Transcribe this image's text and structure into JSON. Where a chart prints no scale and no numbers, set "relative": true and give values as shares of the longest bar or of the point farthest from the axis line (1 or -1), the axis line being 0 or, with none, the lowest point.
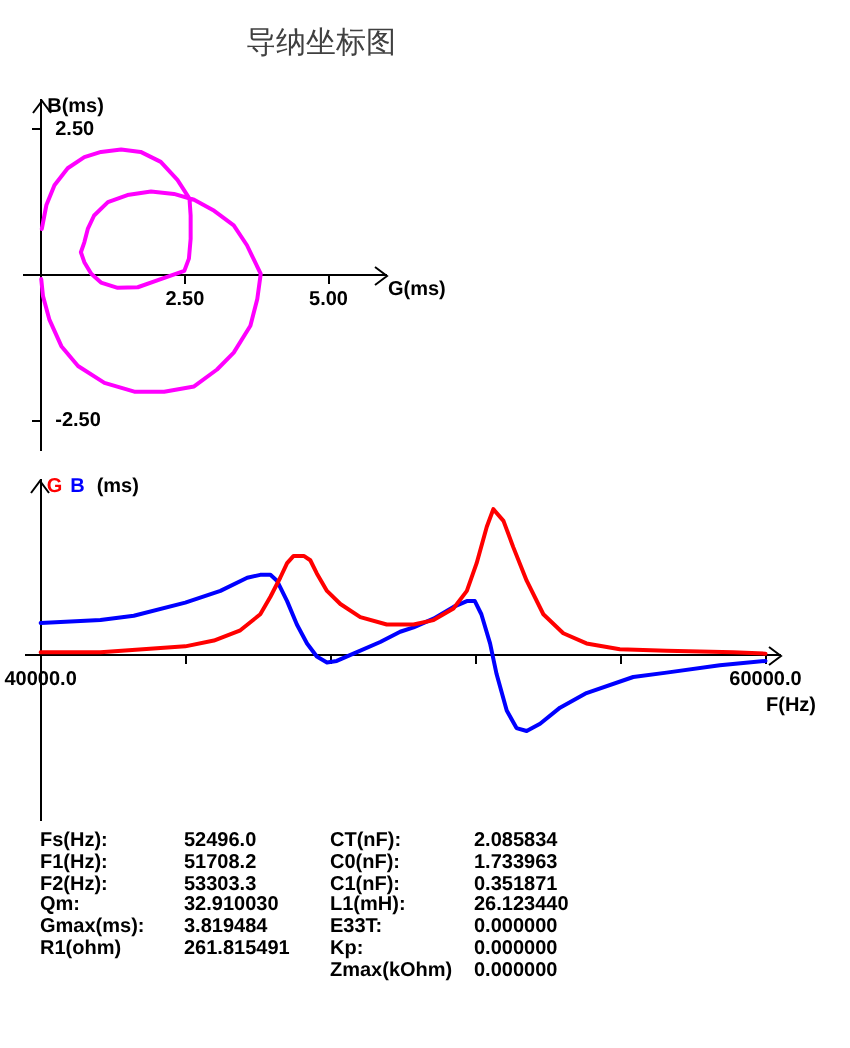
{
  "chart_data": [
    {
      "type": "line",
      "title": "导纳坐标图",
      "xlabel": "G(ms)",
      "ylabel": "B(ms)",
      "xlim": [
        -0.3,
        6.0
      ],
      "ylim": [
        -3.0,
        3.0
      ],
      "xticks": [
        {
          "value": 2.5,
          "label": "2.50"
        },
        {
          "value": 5,
          "label": "5.00"
        }
      ],
      "yticks": [
        {
          "value": 2.5,
          "label": "2.50"
        },
        {
          "value": -2.5,
          "label": "-2.50"
        }
      ],
      "series": [
        {
          "color": "#ff00ff",
          "x": [
            0.01,
            0.09,
            0.23,
            0.46,
            0.75,
            1.04,
            1.39,
            1.73,
            2.08,
            2.37,
            2.58,
            2.6,
            2.6,
            2.57,
            2.49,
            2.08,
            1.68,
            1.33,
            1.04,
            0.87,
            0.75,
            0.69,
            0.75,
            0.81,
            0.92,
            1.16,
            1.5,
            1.91,
            2.31,
            2.66,
            3.01,
            3.35,
            3.58,
            3.82,
            3.76,
            3.64,
            3.35,
            3.06,
            2.66,
            2.14,
            1.62,
            1.1,
            0.64,
            0.35,
            0.14,
            0.03,
            0.0
          ],
          "values": [
            0.79,
            1.2,
            1.54,
            1.83,
            2.02,
            2.11,
            2.15,
            2.11,
            1.94,
            1.63,
            1.31,
            1.02,
            0.62,
            0.28,
            0.07,
            -0.07,
            -0.21,
            -0.22,
            -0.13,
            0.02,
            0.22,
            0.39,
            0.56,
            0.79,
            1.02,
            1.25,
            1.37,
            1.43,
            1.39,
            1.29,
            1.1,
            0.85,
            0.51,
            0.02,
            -0.41,
            -0.87,
            -1.33,
            -1.62,
            -1.91,
            -2.0,
            -2.0,
            -1.85,
            -1.56,
            -1.22,
            -0.76,
            -0.36,
            -0.07
          ]
        }
      ]
    },
    {
      "type": "line",
      "xlabel": "F(Hz)",
      "ylabel": "(ms)",
      "relative": true,
      "xlim": [
        39600,
        60400
      ],
      "xticks": [
        {
          "value": 40000,
          "label": "40000.0"
        },
        {
          "value": 44000,
          "label": null
        },
        {
          "value": 48000,
          "label": null
        },
        {
          "value": 52000,
          "label": null
        },
        {
          "value": 56000,
          "label": null
        },
        {
          "value": 60000,
          "label": "60000.0"
        }
      ],
      "series": [
        {
          "name": "G",
          "color": "#ff0000",
          "x": [
            40000,
            41650,
            43990,
            44780,
            45510,
            46060,
            46340,
            46610,
            46800,
            46980,
            47260,
            47440,
            47620,
            47900,
            48270,
            48820,
            49550,
            50290,
            50840,
            51390,
            51760,
            52030,
            52310,
            52490,
            52770,
            53040,
            53410,
            53870,
            54420,
            55060,
            55980,
            57270,
            59110,
            60000
          ],
          "values": [
            0.02,
            0.02,
            0.06,
            0.1,
            0.17,
            0.28,
            0.4,
            0.53,
            0.63,
            0.68,
            0.68,
            0.65,
            0.56,
            0.44,
            0.35,
            0.26,
            0.21,
            0.21,
            0.24,
            0.32,
            0.44,
            0.63,
            0.88,
            1.0,
            0.92,
            0.74,
            0.51,
            0.28,
            0.15,
            0.08,
            0.04,
            0.03,
            0.02,
            0.01
          ]
        },
        {
          "name": "B",
          "color": "#0000ff",
          "x": [
            40000,
            41650,
            42570,
            43990,
            44960,
            45700,
            46060,
            46340,
            46520,
            46800,
            47070,
            47350,
            47620,
            47900,
            48170,
            48630,
            49370,
            49920,
            50290,
            50840,
            51390,
            51760,
            51980,
            52160,
            52400,
            52580,
            52860,
            53130,
            53410,
            53780,
            54330,
            55060,
            56350,
            57270,
            58740,
            60000
          ],
          "values": [
            0.22,
            0.24,
            0.27,
            0.36,
            0.44,
            0.53,
            0.55,
            0.55,
            0.51,
            0.37,
            0.21,
            0.08,
            -0.01,
            -0.05,
            -0.04,
            0.01,
            0.09,
            0.16,
            0.19,
            0.25,
            0.33,
            0.37,
            0.37,
            0.28,
            0.08,
            -0.13,
            -0.38,
            -0.5,
            -0.52,
            -0.47,
            -0.36,
            -0.26,
            -0.15,
            -0.12,
            -0.07,
            -0.04
          ]
        }
      ]
    },
    {
      "type": "other",
      "annotations": [
        "Fs(Hz):",
        "52496.0",
        "F1(Hz):",
        "51708.2",
        "F2(Hz):",
        "53303.3",
        "Qm:",
        "32.910030",
        "Gmax(ms):",
        "3.819484",
        "R1(ohm)",
        "261.815491",
        "CT(nF):",
        "2.085834",
        "C0(nF):",
        "1.733963",
        "C1(nF):",
        "0.351871",
        "L1(mH):",
        "26.123440",
        "E33T:",
        "0.000000",
        "Kp:",
        "0.000000",
        "Zmax(kOhm)",
        "0.000000"
      ]
    }
  ]
}
